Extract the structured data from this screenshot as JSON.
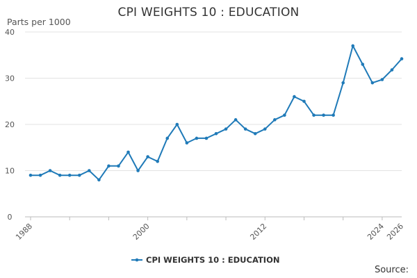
{
  "chart_data": {
    "type": "line",
    "title": "CPI WEIGHTS 10 : EDUCATION",
    "ylabel": "Parts per 1000",
    "xlabel": "",
    "source_label": "Source:",
    "ylim": [
      0,
      40
    ],
    "xlim": [
      1988,
      2026
    ],
    "y_ticks": [
      0,
      10,
      20,
      30,
      40
    ],
    "x_tick_labels": [
      1988,
      2000,
      2012,
      2024,
      2026
    ],
    "grid": "horizontal",
    "legend_position": "bottom",
    "color": "#1f7ab8",
    "series": [
      {
        "name": "CPI WEIGHTS 10 : EDUCATION",
        "x": [
          1988,
          1989,
          1990,
          1991,
          1992,
          1993,
          1994,
          1995,
          1996,
          1997,
          1998,
          1999,
          2000,
          2001,
          2002,
          2003,
          2004,
          2005,
          2006,
          2007,
          2008,
          2009,
          2010,
          2011,
          2012,
          2013,
          2014,
          2015,
          2016,
          2017,
          2018,
          2019,
          2020,
          2021,
          2022,
          2023,
          2024,
          2025,
          2026
        ],
        "values": [
          9,
          9,
          10,
          9,
          9,
          9,
          10,
          8,
          11,
          11,
          14,
          10,
          13,
          12,
          17,
          20,
          16,
          17,
          17,
          18,
          19,
          21,
          19,
          18,
          19,
          21,
          22,
          26,
          25,
          22,
          22,
          22,
          29,
          37,
          33,
          29,
          29.7,
          31.8,
          34.2
        ]
      }
    ]
  }
}
